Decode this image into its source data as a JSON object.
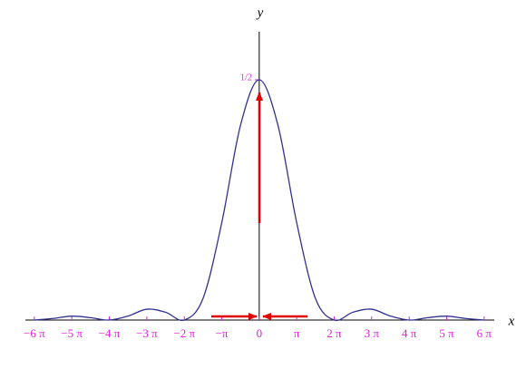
{
  "chart_data": {
    "type": "line",
    "x_label": "x",
    "y_label": "y",
    "x": [
      -18.85,
      -17.28,
      -15.71,
      -14.14,
      -12.57,
      -11.0,
      -9.42,
      -7.85,
      -6.28,
      -4.71,
      -3.14,
      -1.57,
      0,
      1.57,
      3.14,
      4.71,
      6.28,
      7.85,
      9.42,
      11.0,
      12.57,
      14.14,
      15.71,
      17.28,
      18.85
    ],
    "series": [
      {
        "color": "#33338f",
        "values": [
          0,
          0.0033,
          0.0081,
          0.005,
          0,
          0.0083,
          0.0225,
          0.0162,
          0,
          0.045,
          0.2026,
          0.4053,
          0.5,
          0.4053,
          0.2026,
          0.045,
          0,
          0.0162,
          0.0225,
          0.0083,
          0,
          0.005,
          0.0081,
          0.0033,
          0
        ]
      }
    ],
    "xlim": [
      -19.6,
      19.7
    ],
    "ylim": [
      0,
      0.6
    ],
    "xticks": [
      {
        "value": -18.85,
        "label": "−6 π"
      },
      {
        "value": -15.71,
        "label": "−5 π"
      },
      {
        "value": -12.57,
        "label": "−4 π"
      },
      {
        "value": -9.42,
        "label": "−3 π"
      },
      {
        "value": -6.28,
        "label": "−2 π"
      },
      {
        "value": -3.14,
        "label": "−π"
      },
      0,
      {
        "value": 3.14,
        "label": "π"
      },
      {
        "value": 6.28,
        "label": "2 π"
      },
      {
        "value": 9.42,
        "label": "3 π"
      },
      {
        "value": 12.57,
        "label": "4 π"
      },
      {
        "value": 15.71,
        "label": "5 π"
      },
      {
        "value": 18.85,
        "label": "6 π"
      }
    ],
    "yticks": [
      {
        "value": 0.5,
        "label": "1/2"
      }
    ],
    "tick_color": "#e020e0",
    "grid": false
  }
}
